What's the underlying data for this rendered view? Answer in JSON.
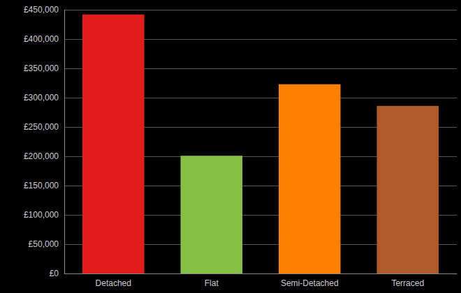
{
  "chart_data": {
    "type": "bar",
    "categories": [
      "Detached",
      "Flat",
      "Semi-Detached",
      "Terraced"
    ],
    "values": [
      442000,
      201000,
      323000,
      286000
    ],
    "colors": [
      "#e31c1c",
      "#86bf44",
      "#ff8000",
      "#b05a28"
    ],
    "ylim": [
      0,
      450000
    ],
    "yticks": [
      {
        "value": 0,
        "label": "£0"
      },
      {
        "value": 50000,
        "label": "£50,000"
      },
      {
        "value": 100000,
        "label": "£100,000"
      },
      {
        "value": 150000,
        "label": "£150,000"
      },
      {
        "value": 200000,
        "label": "£200,000"
      },
      {
        "value": 250000,
        "label": "£250,000"
      },
      {
        "value": 300000,
        "label": "£300,000"
      },
      {
        "value": 350000,
        "label": "£350,000"
      },
      {
        "value": 400000,
        "label": "£400,000"
      },
      {
        "value": 450000,
        "label": "£450,000"
      }
    ],
    "grid": true
  }
}
